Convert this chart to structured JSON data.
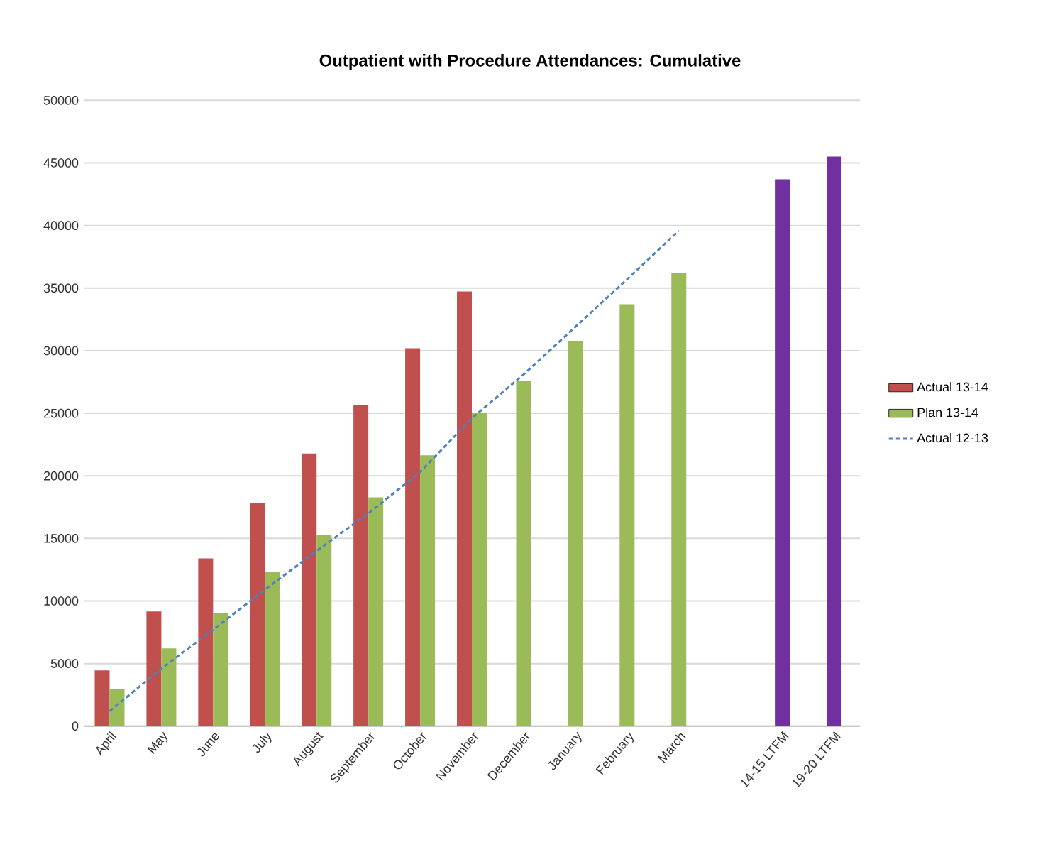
{
  "chart_data": {
    "type": "bar",
    "title": "Outpatient with Procedure Attendances: Cumulative",
    "categories": [
      "April",
      "May",
      "June",
      "July",
      "August",
      "September",
      "October",
      "November",
      "December",
      "January",
      "February",
      "March",
      null,
      "14-15 LTFM",
      "19-20 LTFM"
    ],
    "series": [
      {
        "name": "Actual 13-14",
        "color": "#c0504d",
        "values": [
          4450,
          9160,
          13400,
          17820,
          21790,
          25650,
          30190,
          34730,
          null,
          null,
          null,
          null,
          null,
          null,
          null
        ]
      },
      {
        "name": "Plan 13-14",
        "color": "#9bbb59",
        "values": [
          3000,
          6210,
          9010,
          12330,
          15280,
          18280,
          21640,
          25000,
          27620,
          30790,
          33710,
          36200,
          null,
          null,
          null
        ]
      },
      {
        "color": "#7030a0",
        "values": [
          null,
          null,
          null,
          null,
          null,
          null,
          null,
          null,
          null,
          null,
          null,
          null,
          null,
          43690,
          45510
        ]
      },
      {
        "name": "Actual 12-13",
        "type": "line",
        "color": "#4f81bd",
        "line_style": "dashed",
        "values": [
          1200,
          4600,
          7700,
          10900,
          14000,
          17000,
          20300,
          24600,
          28100,
          31900,
          35700,
          39600,
          null,
          null,
          null
        ]
      }
    ],
    "ylim": [
      0,
      50000
    ],
    "yticks": [
      0,
      5000,
      10000,
      15000,
      20000,
      25000,
      30000,
      35000,
      40000,
      45000,
      50000
    ],
    "grid": "y",
    "legend": "right"
  }
}
